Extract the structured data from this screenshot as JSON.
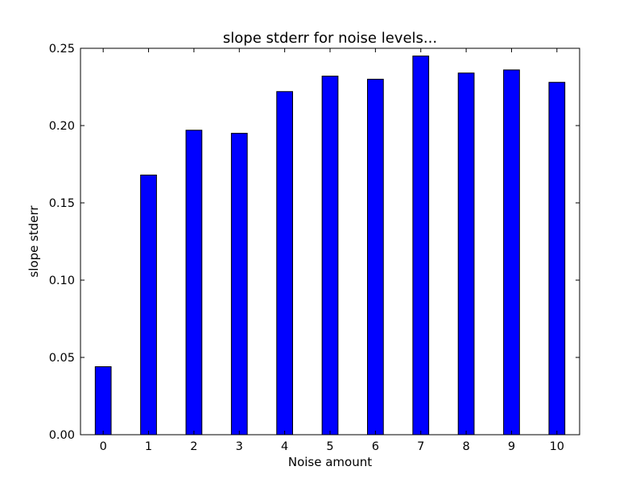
{
  "chart_data": {
    "type": "bar",
    "title": "slope stderr for noise levels...",
    "xlabel": "Noise amount",
    "ylabel": "slope stderr",
    "categories": [
      "0",
      "1",
      "2",
      "3",
      "4",
      "5",
      "6",
      "7",
      "8",
      "9",
      "10"
    ],
    "values": [
      0.044,
      0.168,
      0.197,
      0.195,
      0.222,
      0.232,
      0.23,
      0.245,
      0.234,
      0.236,
      0.228
    ],
    "ylim": [
      0,
      0.25
    ],
    "yticks": [
      "0.00",
      "0.05",
      "0.10",
      "0.15",
      "0.20",
      "0.25"
    ],
    "bar_color": "#0000ff",
    "edge_color": "#000000",
    "grid": false,
    "legend": "none"
  }
}
